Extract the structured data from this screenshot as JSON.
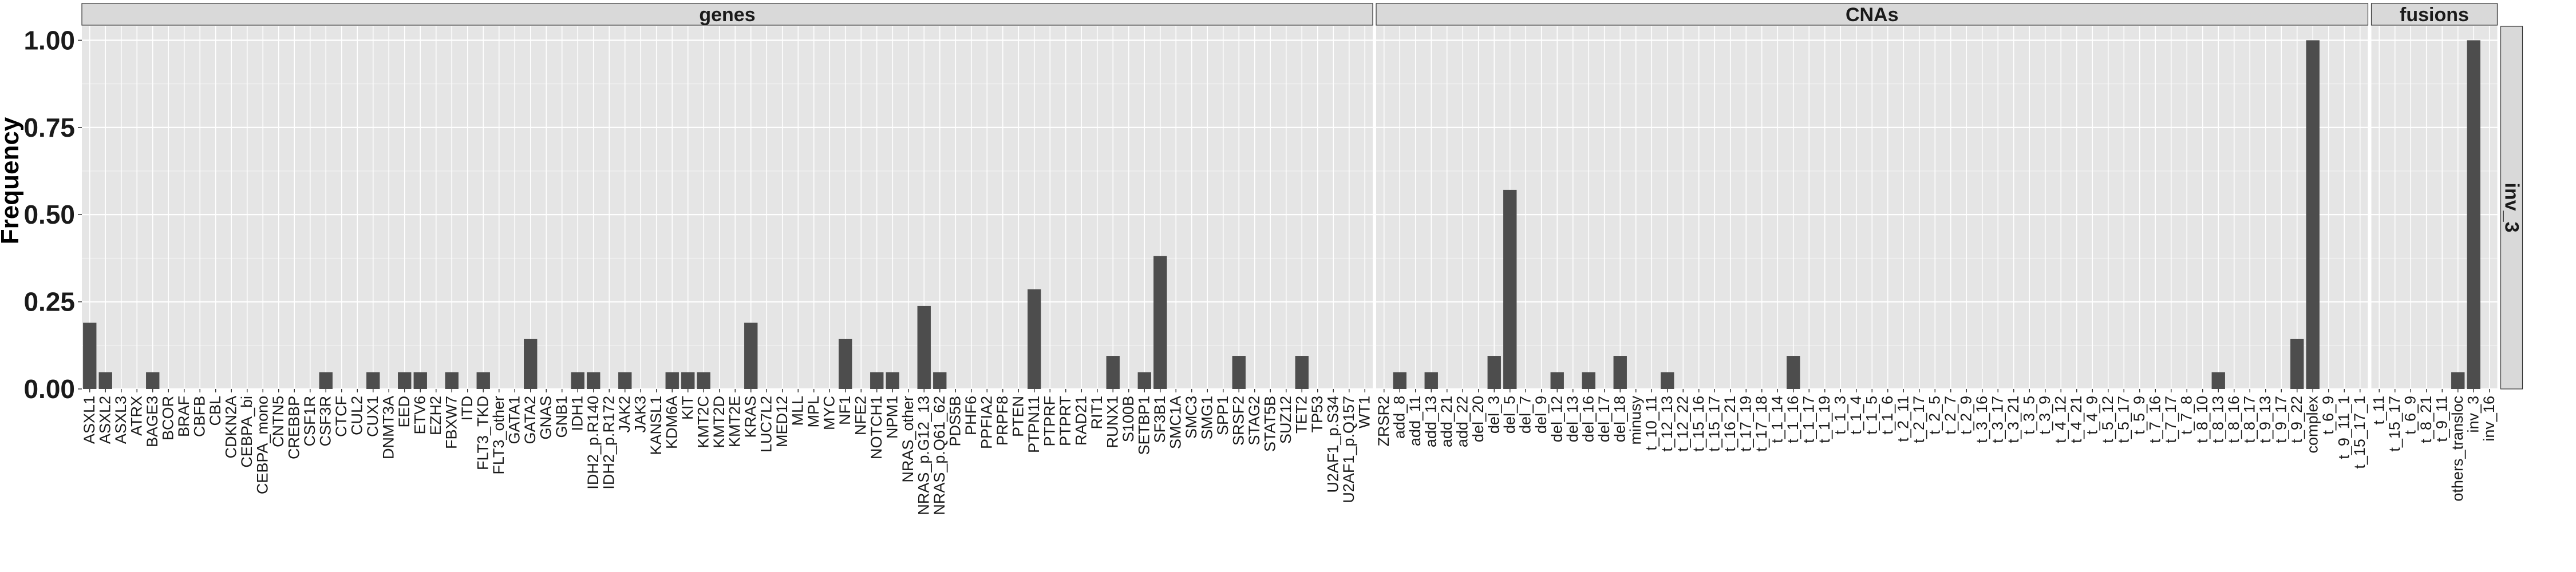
{
  "chart_data": {
    "type": "bar",
    "ylabel": "Frequency",
    "ylim": [
      0,
      1.04
    ],
    "yticks": [
      "0.00",
      "0.25",
      "0.50",
      "0.75",
      "1.00"
    ],
    "yticks_values": [
      0,
      0.25,
      0.5,
      0.75,
      1.0
    ],
    "row_strip": "inv_3",
    "grid": true,
    "colors": {
      "bar": "#4d4d4d",
      "panel": "#e5e5e5",
      "strip": "#d9d9d9",
      "grid": "#f2f2f2"
    },
    "panels": [
      {
        "name": "genes",
        "categories": [
          "ASXL1",
          "ASXL2",
          "ASXL3",
          "ATRX",
          "BAGE3",
          "BCOR",
          "BRAF",
          "CBFB",
          "CBL",
          "CDKN2A",
          "CEBPA_bi",
          "CEBPA_mono",
          "CNTN5",
          "CREBBP",
          "CSF1R",
          "CSF3R",
          "CTCF",
          "CUL2",
          "CUX1",
          "DNMT3A",
          "EED",
          "ETV6",
          "EZH2",
          "FBXW7",
          "ITD",
          "FLT3_TKD",
          "FLT3_other",
          "GATA1",
          "GATA2",
          "GNAS",
          "GNB1",
          "IDH1",
          "IDH2_p.R140",
          "IDH2_p.R172",
          "JAK2",
          "JAK3",
          "KANSL1",
          "KDM6A",
          "KIT",
          "KMT2C",
          "KMT2D",
          "KMT2E",
          "KRAS",
          "LUC7L2",
          "MED12",
          "MLL",
          "MPL",
          "MYC",
          "NF1",
          "NFE2",
          "NOTCH1",
          "NPM1",
          "NRAS_other",
          "NRAS_p.G12_13",
          "NRAS_p.Q61_62",
          "PDS5B",
          "PHF6",
          "PPFIA2",
          "PRPF8",
          "PTEN",
          "PTPN11",
          "PTPRF",
          "PTPRT",
          "RAD21",
          "RIT1",
          "RUNX1",
          "S100B",
          "SETBP1",
          "SF3B1",
          "SMC1A",
          "SMC3",
          "SMG1",
          "SPP1",
          "SRSF2",
          "STAG2",
          "STAT5B",
          "SUZ12",
          "TET2",
          "TP53",
          "U2AF1_p.S34",
          "U2AF1_p.Q157",
          "WT1"
        ],
        "values": [
          0.19,
          0.048,
          0,
          0,
          0.048,
          0,
          0,
          0,
          0,
          0,
          0,
          0,
          0,
          0,
          0,
          0.048,
          0,
          0,
          0.048,
          0,
          0.048,
          0.048,
          0,
          0.048,
          0,
          0.048,
          0,
          0,
          0.143,
          0,
          0,
          0.048,
          0.048,
          0,
          0.048,
          0,
          0,
          0.048,
          0.048,
          0.048,
          0,
          0,
          0.19,
          0,
          0,
          0,
          0,
          0,
          0.143,
          0,
          0.048,
          0.048,
          0,
          0.238,
          0.048,
          0,
          0,
          0,
          0,
          0,
          0.286,
          0,
          0,
          0,
          0,
          0.095,
          0,
          0.048,
          0.381,
          0,
          0,
          0,
          0,
          0.095,
          0,
          0,
          0,
          0.095,
          0,
          0,
          0,
          0
        ]
      },
      {
        "name": "CNAs",
        "categories": [
          "ZRSR2",
          "add_8",
          "add_11",
          "add_13",
          "add_21",
          "add_22",
          "del_20",
          "del_3",
          "del_5",
          "del_7",
          "del_9",
          "del_12",
          "del_13",
          "del_16",
          "del_17",
          "del_18",
          "minusy",
          "t_10_11",
          "t_12_13",
          "t_12_22",
          "t_15_16",
          "t_15_17",
          "t_16_21",
          "t_17_19",
          "t_17_18",
          "t_1_14",
          "t_1_16",
          "t_1_17",
          "t_1_19",
          "t_1_3",
          "t_1_4",
          "t_1_5",
          "t_1_6",
          "t_2_11",
          "t_2_17",
          "t_2_5",
          "t_2_7",
          "t_2_9",
          "t_3_16",
          "t_3_17",
          "t_3_21",
          "t_3_5",
          "t_3_9",
          "t_4_12",
          "t_4_21",
          "t_4_9",
          "t_5_12",
          "t_5_17",
          "t_5_9",
          "t_7_16",
          "t_7_17",
          "t_7_8",
          "t_8_10",
          "t_8_13",
          "t_8_16",
          "t_8_17",
          "t_9_13",
          "t_9_17",
          "t_9_22",
          "complex",
          "t_6_9",
          "t_9_11_1",
          "t_15_17_1"
        ],
        "values": [
          0,
          0.048,
          0,
          0.048,
          0,
          0,
          0,
          0.095,
          0.571,
          0,
          0,
          0.048,
          0,
          0.048,
          0,
          0.095,
          0,
          0,
          0.048,
          0,
          0,
          0,
          0,
          0,
          0,
          0,
          0.095,
          0,
          0,
          0,
          0,
          0,
          0,
          0,
          0,
          0,
          0,
          0,
          0,
          0,
          0,
          0,
          0,
          0,
          0,
          0,
          0,
          0,
          0,
          0,
          0,
          0,
          0,
          0.048,
          0,
          0,
          0,
          0,
          0.143,
          1.0,
          0,
          0,
          0
        ]
      },
      {
        "name": "fusions",
        "categories": [
          "t_11",
          "t_15_17",
          "t_6_9",
          "t_8_21",
          "t_9_11",
          "others_transloc",
          "inv_3",
          "inv_16"
        ],
        "values": [
          0,
          0,
          0,
          0,
          0,
          0.048,
          1.0,
          0
        ]
      }
    ]
  }
}
